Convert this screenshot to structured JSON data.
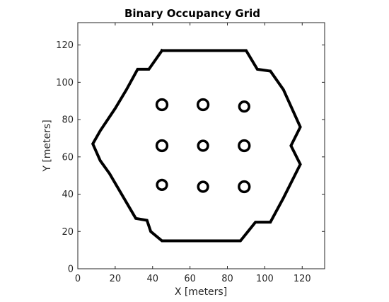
{
  "chart_data": {
    "type": "heatmap",
    "title": "Binary Occupancy Grid",
    "xlabel": "X [meters]",
    "ylabel": "Y [meters]",
    "xlim": [
      0,
      132
    ],
    "ylim": [
      0,
      132
    ],
    "xticks": [
      0,
      20,
      40,
      60,
      80,
      100,
      120
    ],
    "yticks": [
      0,
      20,
      40,
      60,
      80,
      100,
      120
    ],
    "grid": false,
    "legend": "none",
    "colors": {
      "occupied": "#000000",
      "free": "#ffffff",
      "axes": "#262626"
    },
    "boundary_outline": [
      [
        45,
        117
      ],
      [
        72,
        117
      ],
      [
        90,
        117
      ],
      [
        96,
        107
      ],
      [
        103,
        106
      ],
      [
        110,
        96
      ],
      [
        119,
        76
      ],
      [
        114,
        66
      ],
      [
        119,
        56
      ],
      [
        110,
        38
      ],
      [
        103,
        25
      ],
      [
        95,
        25
      ],
      [
        87,
        15
      ],
      [
        62,
        15
      ],
      [
        45,
        15
      ],
      [
        39,
        20
      ],
      [
        37,
        26
      ],
      [
        31,
        27
      ],
      [
        17,
        51
      ],
      [
        12,
        58
      ],
      [
        8,
        67
      ],
      [
        12,
        74
      ],
      [
        20,
        86
      ],
      [
        26,
        96
      ],
      [
        32,
        107
      ],
      [
        38,
        107
      ],
      [
        45,
        117
      ]
    ],
    "obstacles": [
      {
        "x": 45,
        "y": 88,
        "r": 2.8
      },
      {
        "x": 67,
        "y": 88,
        "r": 2.8
      },
      {
        "x": 89,
        "y": 87,
        "r": 2.6
      },
      {
        "x": 45,
        "y": 66,
        "r": 2.8
      },
      {
        "x": 67,
        "y": 66,
        "r": 2.6
      },
      {
        "x": 89,
        "y": 66,
        "r": 2.8
      },
      {
        "x": 45,
        "y": 45,
        "r": 2.6
      },
      {
        "x": 67,
        "y": 44,
        "r": 2.6
      },
      {
        "x": 89,
        "y": 44,
        "r": 2.8
      }
    ]
  }
}
